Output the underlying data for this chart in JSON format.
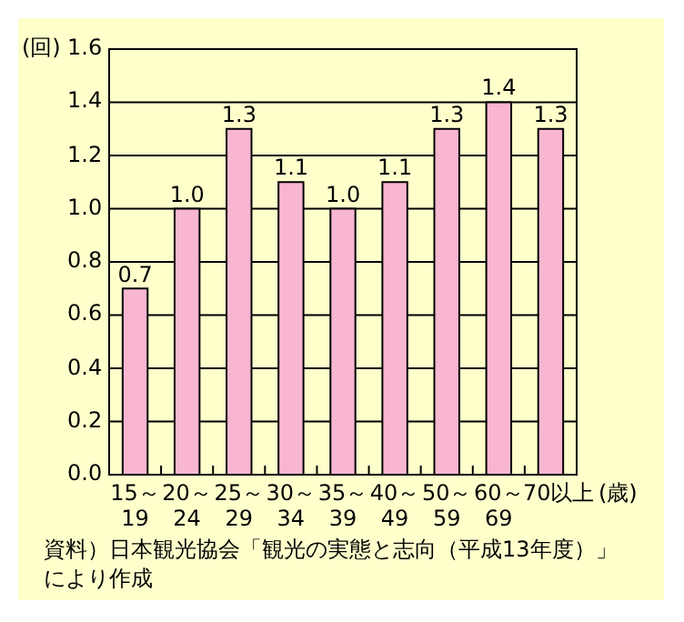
{
  "chart_data": {
    "type": "bar",
    "ylabel": "(回)",
    "xlabel": "(歳)",
    "categories": [
      "15～19",
      "20～24",
      "25～29",
      "30～34",
      "35～39",
      "40～49",
      "50～59",
      "60～69",
      "70以上"
    ],
    "values": [
      0.7,
      1.0,
      1.3,
      1.1,
      1.0,
      1.1,
      1.3,
      1.4,
      1.3
    ],
    "value_labels": [
      "0.7",
      "1.0",
      "1.3",
      "1.1",
      "1.0",
      "1.1",
      "1.3",
      "1.4",
      "1.3"
    ],
    "color": "#f8b6d0",
    "ylim": [
      0,
      1.6
    ],
    "yticks": [
      {
        "value": 0,
        "label": "0.0"
      },
      {
        "value": 0.2,
        "label": "0.2"
      },
      {
        "value": 0.4,
        "label": "0.4"
      },
      {
        "value": 0.6,
        "label": "0.6"
      },
      {
        "value": 0.8,
        "label": "0.8"
      },
      {
        "value": 1,
        "label": "1.0"
      },
      {
        "value": 1.2,
        "label": "1.2"
      },
      {
        "value": 1.4,
        "label": "1.4"
      },
      {
        "value": 1.6,
        "label": "1.6"
      }
    ],
    "grid": "y",
    "annotations": [
      "資料）日本観光協会「観光の実態と志向（平成13年度）」により作成"
    ]
  }
}
